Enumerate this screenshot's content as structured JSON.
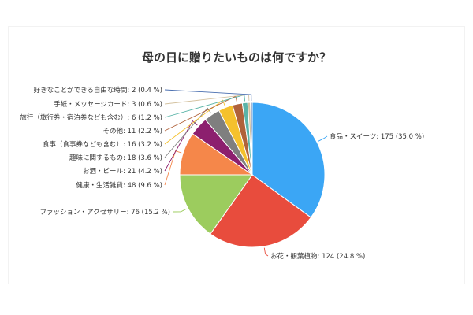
{
  "chart_data": {
    "type": "pie",
    "title": "母の日に贈りたいものは何ですか？",
    "slices": [
      {
        "label": "食品・スイーツ",
        "value": 175,
        "percent": 35.0,
        "color": "#3ba6f5"
      },
      {
        "label": "お花・観葉植物",
        "value": 124,
        "percent": 24.8,
        "color": "#e84c3d"
      },
      {
        "label": "ファッション・アクセサリー",
        "value": 76,
        "percent": 15.2,
        "color": "#9ccc5e"
      },
      {
        "label": "健康・生活雑貨",
        "value": 48,
        "percent": 9.6,
        "color": "#f5874a"
      },
      {
        "label": "お酒・ビール",
        "value": 21,
        "percent": 4.2,
        "color": "#8c1f6e"
      },
      {
        "label": "趣味に関するもの",
        "value": 18,
        "percent": 3.6,
        "color": "#7f7f7f"
      },
      {
        "label": "食事（食事券なども含む）",
        "value": 16,
        "percent": 3.2,
        "color": "#f5c12d"
      },
      {
        "label": "その他",
        "value": 11,
        "percent": 2.2,
        "color": "#b0623a"
      },
      {
        "label": "旅行（旅行券・宿泊券なども含む）",
        "value": 6,
        "percent": 1.2,
        "color": "#5ab4a8"
      },
      {
        "label": "手紙・メッセージカード",
        "value": 3,
        "percent": 0.6,
        "color": "#d4c2a0"
      },
      {
        "label": "好きなことができる自由な時間",
        "value": 2,
        "percent": 0.4,
        "color": "#4a6fb0"
      }
    ],
    "label_format": "{label}: {value} ({percent} %)",
    "legend": "none",
    "start_angle": "12 o'clock",
    "direction": "clockwise"
  }
}
